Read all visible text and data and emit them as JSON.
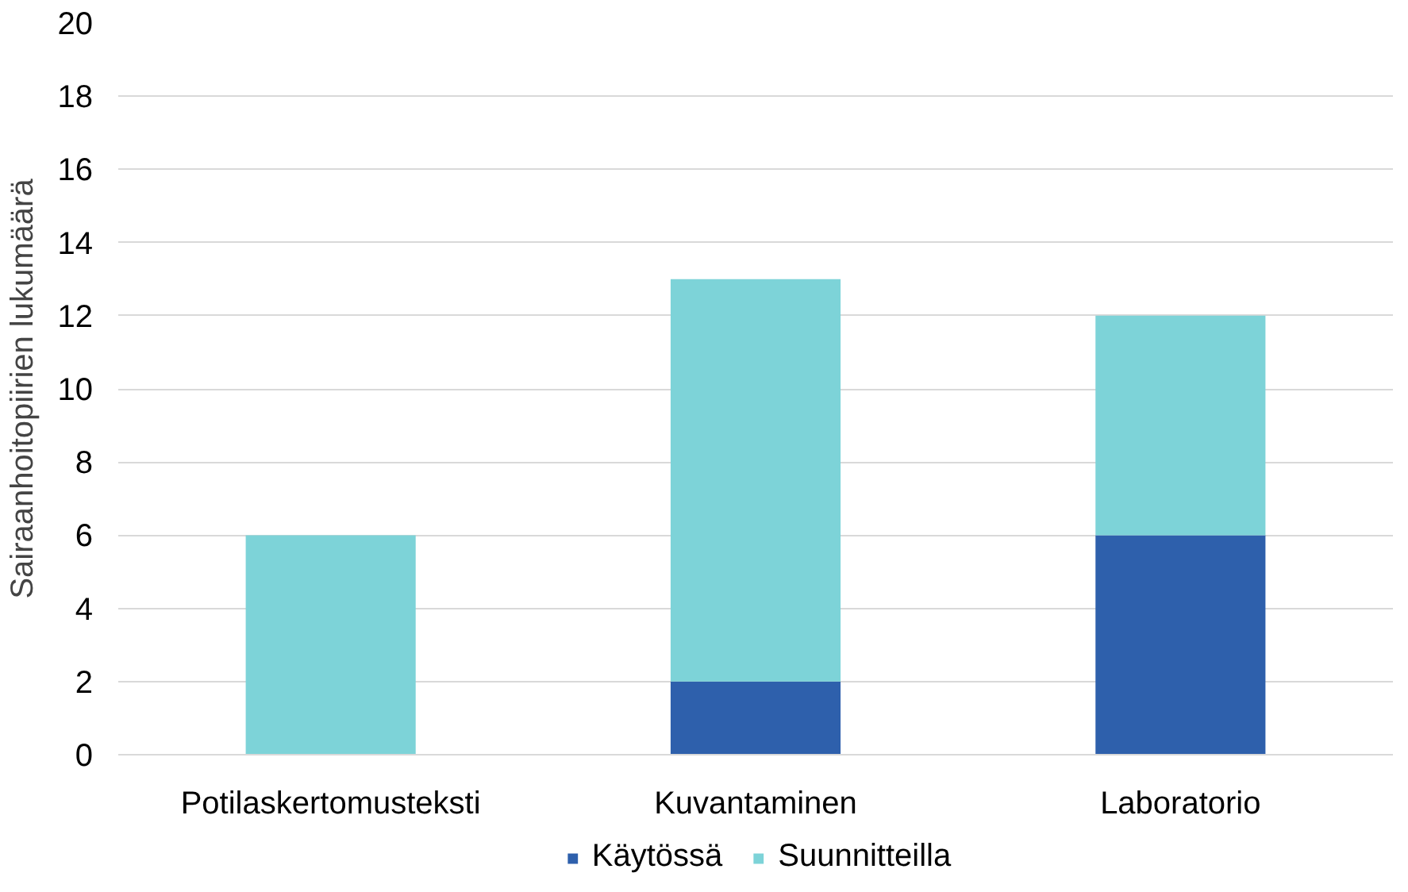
{
  "chart_data": {
    "type": "bar",
    "stacked": true,
    "ylabel": "Sairaanhoitopiirien lukumäärä",
    "categories": [
      "Potilaskertomusteksti",
      "Kuvantaminen",
      "Laboratorio"
    ],
    "series": [
      {
        "name": "Käytössä",
        "color": "#2e60ac",
        "values": [
          0,
          2,
          6
        ]
      },
      {
        "name": "Suunnitteilla",
        "color": "#7dd3d8",
        "values": [
          6,
          11,
          6
        ]
      }
    ],
    "ylim": [
      0,
      20
    ],
    "yticks": [
      0,
      2,
      4,
      6,
      8,
      10,
      12,
      14,
      16,
      18,
      20
    ],
    "grid": "y",
    "legend": "bottom"
  }
}
